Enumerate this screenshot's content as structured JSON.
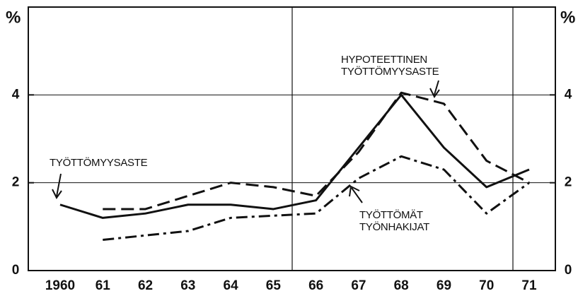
{
  "chart_data": {
    "type": "line",
    "y_label": "%",
    "y2_label": "%",
    "categories": [
      "1960",
      "61",
      "62",
      "63",
      "64",
      "65",
      "66",
      "67",
      "68",
      "69",
      "70",
      "71"
    ],
    "series": [
      {
        "name": "TYÖTTÖMYYSASTE",
        "color": "#111111",
        "dash": "solid",
        "values": [
          1.5,
          1.2,
          1.3,
          1.5,
          1.5,
          1.4,
          1.6,
          2.8,
          4.0,
          2.8,
          1.9,
          2.3
        ]
      },
      {
        "name": "HYPOTEETTINEN TYÖTTÖMYYSASTE",
        "color": "#111111",
        "dash": "dashed",
        "values": [
          null,
          1.4,
          1.4,
          1.7,
          2.0,
          1.9,
          1.7,
          2.7,
          4.05,
          3.8,
          2.5,
          2.0
        ]
      },
      {
        "name": "TYÖTTÖMÄT TYÖNHAKIJAT",
        "color": "#111111",
        "dash": "dashdot",
        "values": [
          null,
          0.7,
          0.8,
          0.9,
          1.2,
          1.25,
          1.3,
          2.1,
          2.6,
          2.3,
          1.3,
          2.0
        ]
      }
    ],
    "ylim": [
      0,
      6
    ],
    "yticks": [
      0,
      2,
      4
    ],
    "y2lim": [
      0,
      6
    ],
    "y2ticks": [
      0,
      2,
      4
    ],
    "grid": true
  }
}
